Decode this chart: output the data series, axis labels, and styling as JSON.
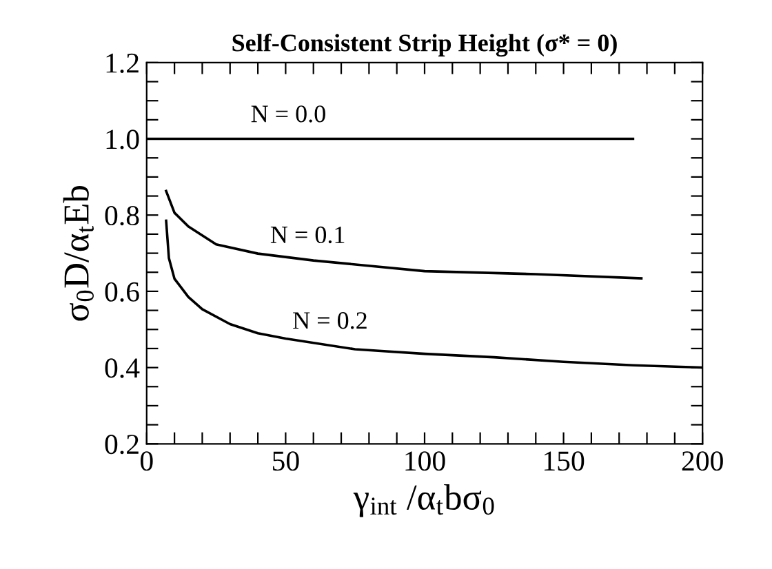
{
  "chart_data": {
    "type": "line",
    "title": "Self-Consistent Strip Height (σ* = 0)",
    "xlabel": "γ$_{int}$ /α$_{t}$bσ$_{0}$",
    "ylabel": "σ$_{0}$D/α$_{t}$Eb",
    "series": [
      {
        "name": "N = 0.0",
        "color": "#000000",
        "x": [
          0,
          175
        ],
        "values": [
          1.0,
          1.0
        ]
      },
      {
        "name": "N = 0.1",
        "color": "#000000",
        "x": [
          7,
          10,
          15,
          25,
          40,
          60,
          100,
          140,
          178
        ],
        "values": [
          0.863,
          0.806,
          0.77,
          0.723,
          0.699,
          0.681,
          0.653,
          0.645,
          0.634
        ]
      },
      {
        "name": "N = 0.2",
        "color": "#000000",
        "x": [
          7,
          8,
          10,
          15,
          20,
          30,
          40,
          50,
          75,
          100,
          125,
          150,
          175,
          200
        ],
        "values": [
          0.785,
          0.687,
          0.633,
          0.585,
          0.553,
          0.514,
          0.49,
          0.476,
          0.448,
          0.436,
          0.427,
          0.415,
          0.406,
          0.4
        ]
      }
    ],
    "xlim": [
      0,
      200
    ],
    "ylim": [
      0.2,
      1.2
    ],
    "xticks": [
      0,
      {
        "value": 10,
        "label": null
      },
      {
        "value": 20,
        "label": null
      },
      {
        "value": 30,
        "label": null
      },
      {
        "value": 40,
        "label": null
      },
      50,
      {
        "value": 60,
        "label": null
      },
      {
        "value": 70,
        "label": null
      },
      {
        "value": 80,
        "label": null
      },
      {
        "value": 90,
        "label": null
      },
      100,
      {
        "value": 110,
        "label": null
      },
      {
        "value": 120,
        "label": null
      },
      {
        "value": 130,
        "label": null
      },
      {
        "value": 140,
        "label": null
      },
      150,
      {
        "value": 160,
        "label": null
      },
      {
        "value": 170,
        "label": null
      },
      {
        "value": 180,
        "label": null
      },
      {
        "value": 190,
        "label": null
      },
      200
    ],
    "yticks": [
      {
        "value": 0.2,
        "label": "0.2"
      },
      {
        "value": 0.25,
        "label": null
      },
      {
        "value": 0.3,
        "label": null
      },
      {
        "value": 0.35,
        "label": null
      },
      {
        "value": 0.4,
        "label": "0.4"
      },
      {
        "value": 0.45,
        "label": null
      },
      {
        "value": 0.5,
        "label": null
      },
      {
        "value": 0.55,
        "label": null
      },
      {
        "value": 0.6,
        "label": "0.6"
      },
      {
        "value": 0.65,
        "label": null
      },
      {
        "value": 0.7,
        "label": null
      },
      {
        "value": 0.75,
        "label": null
      },
      {
        "value": 0.8,
        "label": "0.8"
      },
      {
        "value": 0.85,
        "label": null
      },
      {
        "value": 0.9,
        "label": null
      },
      {
        "value": 0.95,
        "label": null
      },
      {
        "value": 1.0,
        "label": "1.0"
      },
      {
        "value": 1.05,
        "label": null
      },
      {
        "value": 1.1,
        "label": null
      },
      {
        "value": 1.15,
        "label": null
      },
      {
        "value": 1.2,
        "label": "1.2"
      }
    ],
    "grid": false,
    "legend": false
  }
}
